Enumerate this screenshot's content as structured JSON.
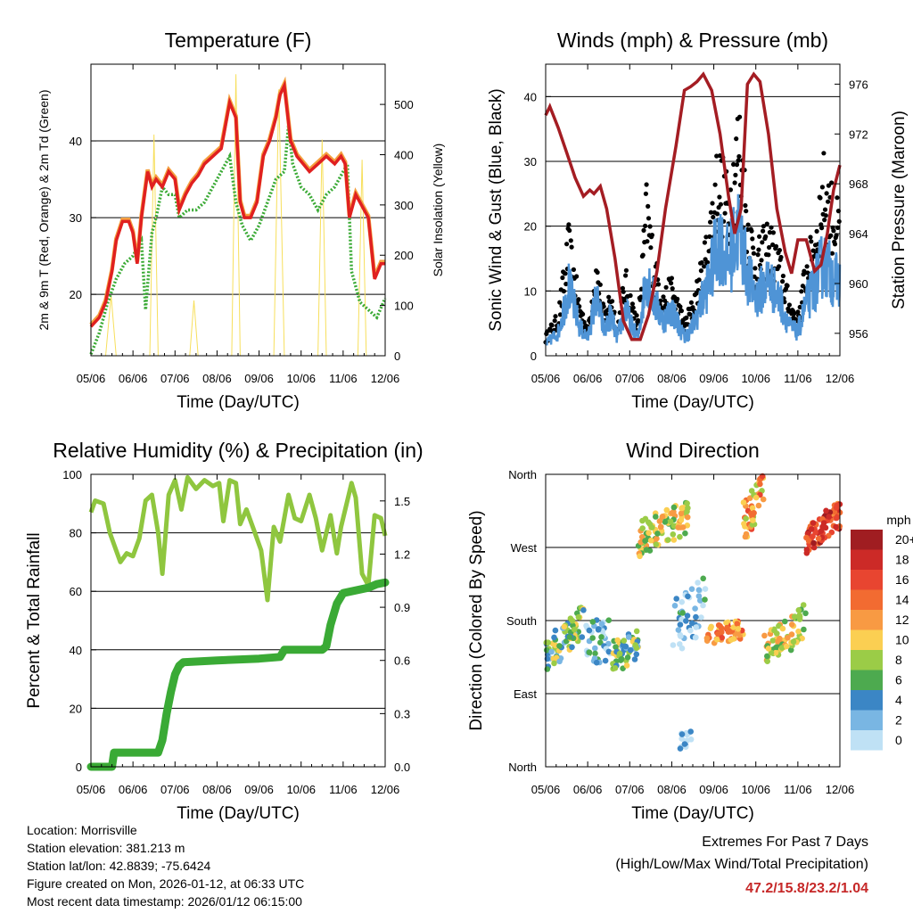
{
  "chart_data": [
    {
      "type": "line",
      "title": "Temperature (F)",
      "xlabel": "Time (Day/UTC)",
      "ylabel": "2m & 9m T (Red, Orange) & 2m Td (Green)",
      "y2label": "Solar Insolation (Yellow)",
      "ylim": [
        12,
        50
      ],
      "y2lim": [
        0,
        580
      ],
      "xlim": [
        0,
        7
      ],
      "categories": [
        "05/06",
        "06/06",
        "07/06",
        "08/06",
        "09/06",
        "10/06",
        "11/06",
        "12/06"
      ],
      "yticks": [
        20,
        30,
        40
      ],
      "y2ticks": [
        0,
        100,
        200,
        300,
        400,
        500
      ],
      "series": [
        {
          "name": "2m T",
          "color": "#e02020",
          "x": [
            0,
            0.2,
            0.35,
            0.5,
            0.6,
            0.75,
            0.9,
            1.0,
            1.1,
            1.2,
            1.35,
            1.45,
            1.55,
            1.7,
            1.85,
            2.0,
            2.1,
            2.25,
            2.4,
            2.55,
            2.7,
            2.9,
            3.1,
            3.3,
            3.45,
            3.55,
            3.65,
            3.8,
            3.95,
            4.1,
            4.25,
            4.4,
            4.5,
            4.6,
            4.75,
            4.9,
            5.05,
            5.2,
            5.4,
            5.6,
            5.8,
            5.95,
            6.05,
            6.15,
            6.3,
            6.5,
            6.6,
            6.75,
            6.9,
            7.0
          ],
          "values": [
            15.8,
            17,
            19,
            23,
            27,
            29.5,
            29.5,
            28,
            24,
            30,
            36,
            34,
            35,
            34,
            36,
            35,
            31,
            33,
            34.5,
            35.5,
            37,
            38,
            39,
            45,
            43,
            32,
            30,
            30,
            32,
            38,
            40,
            43,
            46,
            47.2,
            40,
            38,
            37,
            36,
            37,
            38,
            37,
            38,
            37,
            30,
            33,
            31,
            30,
            22,
            24,
            24
          ]
        },
        {
          "name": "2m Td",
          "color": "#3aaa35",
          "x": [
            0,
            0.2,
            0.4,
            0.6,
            0.8,
            1.0,
            1.2,
            1.3,
            1.45,
            1.55,
            1.7,
            1.85,
            2.0,
            2.1,
            2.3,
            2.5,
            2.7,
            2.9,
            3.1,
            3.3,
            3.45,
            3.6,
            3.8,
            4.0,
            4.2,
            4.4,
            4.6,
            4.7,
            4.8,
            5.0,
            5.2,
            5.4,
            5.6,
            5.8,
            6.0,
            6.1,
            6.2,
            6.4,
            6.6,
            6.8,
            7.0
          ],
          "values": [
            12.2,
            15,
            19,
            22,
            24,
            25,
            27,
            18,
            28,
            30,
            34,
            33,
            33,
            30,
            31,
            31,
            32,
            34,
            36,
            38,
            32,
            29,
            27,
            29,
            32,
            35,
            36,
            42,
            37,
            34,
            33,
            31,
            33,
            34,
            36,
            37,
            23,
            19,
            18,
            17,
            19.5
          ]
        },
        {
          "name": "Solar Insolation",
          "color": "#f7df5c",
          "axis": "y2",
          "x": [
            0.35,
            0.48,
            0.6,
            1.4,
            1.5,
            1.6,
            2.35,
            2.45,
            2.55,
            3.35,
            3.45,
            3.55,
            4.35,
            4.47,
            4.6,
            5.4,
            5.5,
            5.6,
            6.35,
            6.45,
            6.55
          ],
          "values": [
            0,
            120,
            0,
            0,
            440,
            0,
            0,
            110,
            0,
            0,
            560,
            0,
            0,
            530,
            0,
            0,
            430,
            0,
            0,
            390,
            0
          ]
        }
      ]
    },
    {
      "type": "line",
      "title": "Winds (mph) & Pressure (mb)",
      "xlabel": "Time (Day/UTC)",
      "ylabel": "Sonic Wind & Gust (Blue, Black)",
      "y2label": "Station Pressure (Maroon)",
      "ylim": [
        0,
        45
      ],
      "y2lim": [
        954.2,
        977.6
      ],
      "xlim": [
        0,
        7
      ],
      "categories": [
        "05/06",
        "06/06",
        "07/06",
        "08/06",
        "09/06",
        "10/06",
        "11/06",
        "12/06"
      ],
      "yticks": [
        0,
        10,
        20,
        30,
        40
      ],
      "y2ticks": [
        956,
        960,
        964,
        968,
        972,
        976
      ],
      "series": [
        {
          "name": "Sonic Wind",
          "color": "#4f94d6",
          "x": [
            0,
            0.3,
            0.55,
            0.8,
            1.0,
            1.2,
            1.4,
            1.55,
            1.7,
            1.9,
            2.05,
            2.2,
            2.4,
            2.6,
            2.8,
            3.0,
            3.3,
            3.5,
            3.7,
            3.9,
            4.1,
            4.35,
            4.6,
            4.8,
            5.0,
            5.3,
            5.6,
            5.8,
            6.0,
            6.2,
            6.4,
            6.6,
            6.8,
            7.0
          ],
          "values": [
            2,
            4,
            12,
            5,
            3,
            10,
            4,
            7,
            3,
            8,
            5,
            3,
            14,
            9,
            6,
            8,
            3,
            5,
            9,
            13,
            20,
            16,
            22,
            14,
            10,
            13,
            9,
            5,
            4,
            9,
            12,
            16,
            14,
            12
          ]
        },
        {
          "name": "Gust",
          "color": "#000000",
          "x": [
            0,
            0.3,
            0.55,
            0.8,
            1.0,
            1.2,
            1.4,
            1.55,
            1.7,
            1.9,
            2.05,
            2.2,
            2.4,
            2.6,
            2.8,
            3.0,
            3.3,
            3.5,
            3.7,
            3.9,
            4.1,
            4.35,
            4.6,
            4.8,
            5.0,
            5.3,
            5.6,
            5.8,
            6.0,
            6.2,
            6.4,
            6.6,
            6.8,
            7.0
          ],
          "values": [
            3,
            6,
            18,
            8,
            4,
            14,
            6,
            10,
            4,
            12,
            8,
            5,
            24,
            14,
            9,
            11,
            5,
            8,
            13,
            20,
            30,
            24,
            36,
            22,
            15,
            19,
            14,
            8,
            6,
            14,
            18,
            28,
            24,
            20
          ]
        },
        {
          "name": "Station Pressure",
          "color": "#a41d23",
          "axis": "y2",
          "x": [
            0,
            0.1,
            0.3,
            0.5,
            0.7,
            0.9,
            1.05,
            1.15,
            1.3,
            1.45,
            1.65,
            1.85,
            2.05,
            2.25,
            2.45,
            2.65,
            2.85,
            3.1,
            3.3,
            3.45,
            3.6,
            3.75,
            3.95,
            4.15,
            4.35,
            4.5,
            4.65,
            4.8,
            4.95,
            5.1,
            5.3,
            5.5,
            5.7,
            5.85,
            6.0,
            6.2,
            6.4,
            6.55,
            6.7,
            6.85,
            7.0
          ],
          "values": [
            973.5,
            974.2,
            972.5,
            970.5,
            968.5,
            967,
            967.5,
            967.2,
            967.8,
            966,
            962,
            957,
            955.5,
            955.5,
            957.5,
            961,
            966,
            971,
            975.5,
            975.8,
            976.2,
            976.8,
            975.5,
            972,
            967,
            964,
            966,
            976,
            976.8,
            976.2,
            972,
            966,
            962.5,
            960.8,
            963.5,
            963.5,
            961,
            961.5,
            964,
            967.5,
            969.5
          ]
        }
      ]
    },
    {
      "type": "line",
      "title": "Relative Humidity (%) & Precipitation (in)",
      "xlabel": "Time (Day/UTC)",
      "ylabel": "Percent & Total Rainfall",
      "ylim": [
        0,
        100
      ],
      "y2lim": [
        0,
        1.65
      ],
      "xlim": [
        0,
        7
      ],
      "categories": [
        "05/06",
        "06/06",
        "07/06",
        "08/06",
        "09/06",
        "10/06",
        "11/06",
        "12/06"
      ],
      "yticks": [
        0,
        20,
        40,
        60,
        80,
        100
      ],
      "y2ticks": [
        "0.0",
        "0.3",
        "0.6",
        "0.9",
        "1.2",
        "1.5"
      ],
      "series": [
        {
          "name": "Relative Humidity",
          "color": "#8fc63f",
          "x": [
            0,
            0.1,
            0.3,
            0.45,
            0.55,
            0.7,
            0.85,
            1.0,
            1.15,
            1.3,
            1.45,
            1.6,
            1.7,
            1.85,
            2.0,
            2.15,
            2.3,
            2.5,
            2.7,
            2.9,
            3.05,
            3.15,
            3.3,
            3.45,
            3.55,
            3.7,
            3.9,
            4.05,
            4.2,
            4.35,
            4.5,
            4.7,
            4.85,
            5.0,
            5.2,
            5.35,
            5.5,
            5.7,
            5.85,
            5.95,
            6.1,
            6.2,
            6.3,
            6.45,
            6.6,
            6.75,
            6.9,
            7.0
          ],
          "values": [
            87,
            91,
            90,
            80,
            76,
            70,
            73,
            72,
            78,
            91,
            93,
            80,
            66,
            93,
            98,
            88,
            99,
            95,
            98,
            96,
            97,
            84,
            98,
            97,
            83,
            88,
            80,
            74,
            57,
            82,
            77,
            93,
            85,
            84,
            93,
            85,
            74,
            86,
            73,
            82,
            91,
            97,
            92,
            66,
            62,
            86,
            85,
            79
          ]
        },
        {
          "name": "Total Precipitation",
          "color": "#3aaa35",
          "axis": "y2",
          "x": [
            0,
            0.5,
            0.55,
            1.6,
            1.7,
            1.8,
            1.9,
            2.0,
            2.1,
            2.2,
            3.0,
            4.0,
            4.5,
            4.6,
            5.5,
            5.6,
            5.7,
            5.85,
            6.0,
            6.4,
            6.6,
            6.8,
            7.0
          ],
          "values": [
            0,
            0,
            0.08,
            0.08,
            0.15,
            0.3,
            0.42,
            0.52,
            0.57,
            0.59,
            0.6,
            0.61,
            0.62,
            0.66,
            0.66,
            0.68,
            0.8,
            0.92,
            0.98,
            1.0,
            1.01,
            1.03,
            1.04
          ]
        }
      ]
    },
    {
      "type": "scatter",
      "title": "Wind Direction",
      "xlabel": "Time (Day/UTC)",
      "ylabel": "Direction (Colored By Speed)",
      "ylim": [
        0,
        360
      ],
      "xlim": [
        0,
        7
      ],
      "categories": [
        "05/06",
        "06/06",
        "07/06",
        "08/06",
        "09/06",
        "10/06",
        "11/06",
        "12/06"
      ],
      "yticklabels": [
        "North",
        "East",
        "South",
        "West",
        "North"
      ],
      "yticks": [
        0,
        90,
        180,
        270,
        360
      ],
      "segments": [
        {
          "x0": 0.0,
          "x1": 0.9,
          "d0": 135,
          "d1": 180,
          "spread": 22,
          "speed": 6,
          "n": 70
        },
        {
          "x0": 0.95,
          "x1": 1.55,
          "d0": 150,
          "d1": 160,
          "spread": 28,
          "speed": 3,
          "n": 40
        },
        {
          "x0": 1.6,
          "x1": 2.2,
          "d0": 135,
          "d1": 150,
          "spread": 20,
          "speed": 6,
          "n": 50
        },
        {
          "x0": 2.2,
          "x1": 3.4,
          "d0": 280,
          "d1": 310,
          "spread": 22,
          "speed": 9,
          "n": 90
        },
        {
          "x0": 3.0,
          "x1": 3.8,
          "d0": 170,
          "d1": 200,
          "spread": 35,
          "speed": 2,
          "n": 45
        },
        {
          "x0": 3.2,
          "x1": 3.5,
          "d0": 30,
          "d1": 40,
          "spread": 14,
          "speed": 1,
          "n": 14
        },
        {
          "x0": 3.8,
          "x1": 4.7,
          "d0": 160,
          "d1": 170,
          "spread": 12,
          "speed": 13,
          "n": 55
        },
        {
          "x0": 4.7,
          "x1": 5.2,
          "d0": 300,
          "d1": 340,
          "spread": 25,
          "speed": 12,
          "n": 45
        },
        {
          "x0": 5.2,
          "x1": 6.2,
          "d0": 140,
          "d1": 180,
          "spread": 22,
          "speed": 9,
          "n": 70
        },
        {
          "x0": 6.2,
          "x1": 7.0,
          "d0": 280,
          "d1": 310,
          "spread": 18,
          "speed": 16,
          "n": 70
        }
      ],
      "colorbar": {
        "title": "mph",
        "labels": [
          "20+",
          "18",
          "16",
          "14",
          "12",
          "10",
          "8",
          "6",
          "4",
          "2",
          "0"
        ],
        "colors": [
          "#a01d21",
          "#cc2a27",
          "#e84530",
          "#f26b31",
          "#f89a43",
          "#fbcf52",
          "#9bcc47",
          "#4daa4f",
          "#3b86c5",
          "#79b6e3",
          "#bfe1f5"
        ]
      }
    }
  ],
  "info": {
    "location": "Location: Morrisville",
    "elevation": "Station elevation: 381.213 m",
    "latlon": "Station lat/lon: 42.8839; -75.6424",
    "created": "Figure created on Mon, 2026-01-12, at 06:33 UTC",
    "recent": "Most recent data timestamp: 2026/01/12 06:15:00"
  },
  "extremes": {
    "title": "Extremes For Past 7 Days",
    "subtitle": "(High/Low/Max Wind/Total Precipitation)",
    "values": "47.2/15.8/23.2/1.04",
    "color": "#c62828"
  }
}
